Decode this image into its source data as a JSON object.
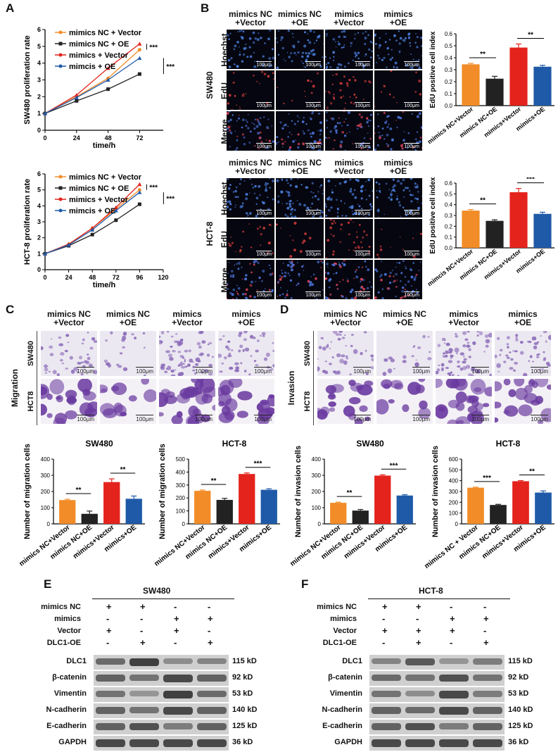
{
  "panels": {
    "A": "A",
    "B": "B",
    "C": "C",
    "D": "D",
    "E": "E",
    "F": "F"
  },
  "colors": {
    "orange": "#f28c28",
    "black": "#222222",
    "red": "#e3231c",
    "blue": "#1f5aa8"
  },
  "panelA": {
    "charts": [
      {
        "type": "line",
        "ylabel": "SW480 proliferation rate",
        "xlabel": "time/h",
        "x": [
          0,
          24,
          48,
          72
        ],
        "xticks": [
          "0",
          "24",
          "48",
          "72"
        ],
        "yticks": [
          "0",
          "1",
          "2",
          "3",
          "4",
          "5",
          "6"
        ],
        "xlim": [
          0,
          90
        ],
        "ylim": [
          0,
          6
        ],
        "series": [
          {
            "name": "mimics NC + Vector",
            "color": "#f28c28",
            "marker": "circle",
            "values": [
              1,
              2.0,
              3.1,
              4.8
            ]
          },
          {
            "name": "mimics NC + OE",
            "color": "#222222",
            "marker": "square",
            "values": [
              1,
              1.75,
              2.45,
              3.35
            ]
          },
          {
            "name": "mimics + Vector",
            "color": "#e3231c",
            "marker": "triangle",
            "values": [
              1,
              2.1,
              3.7,
              5.15
            ]
          },
          {
            "name": "mimcis + OE",
            "color": "#1f5aa8",
            "marker": "triangle",
            "values": [
              1,
              1.95,
              3.0,
              4.3
            ]
          }
        ],
        "sig": [
          "***",
          "***"
        ]
      },
      {
        "type": "line",
        "ylabel": "HCT-8 proliferation rate",
        "xlabel": "time/h",
        "x": [
          0,
          24,
          48,
          72,
          96
        ],
        "xticks": [
          "0",
          "24",
          "48",
          "72",
          "96",
          "120"
        ],
        "yticks": [
          "0",
          "1",
          "2",
          "3",
          "4",
          "5",
          "6"
        ],
        "xlim": [
          0,
          120
        ],
        "ylim": [
          0,
          6
        ],
        "series": [
          {
            "name": "mimics NC + Vector",
            "color": "#f28c28",
            "marker": "circle",
            "values": [
              1,
              1.6,
              2.6,
              3.8,
              5.0
            ]
          },
          {
            "name": "mimics NC + OE",
            "color": "#222222",
            "marker": "square",
            "values": [
              1,
              1.5,
              2.2,
              3.1,
              4.1
            ]
          },
          {
            "name": "mimics + Vector",
            "color": "#e3231c",
            "marker": "triangle",
            "values": [
              1,
              1.6,
              2.6,
              3.9,
              5.35
            ]
          },
          {
            "name": "mimcis + OE",
            "color": "#1f5aa8",
            "marker": "triangle",
            "values": [
              1,
              1.55,
              2.5,
              3.7,
              4.85
            ]
          }
        ],
        "sig": [
          "***",
          "***"
        ]
      }
    ]
  },
  "panelB": {
    "rows": [
      "Hoechst",
      "EdU",
      "Merge"
    ],
    "top": {
      "cell": "SW480",
      "cols": [
        "mimics NC\n+Vector",
        "mimics NC\n+OE",
        "mimics\n+Vector",
        "mimics\n+OE"
      ],
      "scale": "100μm"
    },
    "bottom": {
      "cell": "HCT-8",
      "cols": [
        "mimics NC\n+Vector",
        "mimics NC\n+OE",
        "mimics\n+Vector",
        "mimics\n+OE"
      ],
      "scale": "100μm"
    },
    "charts": [
      {
        "type": "bar",
        "ylabel": "EdU positive cell index",
        "categories": [
          "mimics NC+Vector",
          "mimics NC+OE",
          "mimics+Vector",
          "mimics+OE"
        ],
        "values": [
          0.345,
          0.225,
          0.485,
          0.325
        ],
        "errors": [
          0.008,
          0.02,
          0.03,
          0.012
        ],
        "ylim": [
          0,
          0.6
        ],
        "yticks": [
          "0.0",
          "0.1",
          "0.2",
          "0.3",
          "0.4",
          "0.5",
          "0.6"
        ],
        "sig": [
          "**",
          "**"
        ]
      },
      {
        "type": "bar",
        "ylabel": "EdU positive cell index",
        "categories": [
          "mimcis NC+Vector",
          "mimics NC+OE",
          "mimics+Vector",
          "mimics+OE"
        ],
        "values": [
          0.345,
          0.25,
          0.515,
          0.315
        ],
        "errors": [
          0.01,
          0.01,
          0.035,
          0.015
        ],
        "ylim": [
          0,
          0.6
        ],
        "yticks": [
          "0.0",
          "0.1",
          "0.2",
          "0.3",
          "0.4",
          "0.5",
          "0.6"
        ],
        "sig": [
          "**",
          "***"
        ]
      }
    ]
  },
  "panelC": {
    "side": "Migration",
    "rows": [
      "SW480",
      "HCT8"
    ],
    "cols": [
      "mimics NC\n+Vector",
      "mimics NC\n+OE",
      "mimics\n+Vector",
      "mimics\n+OE"
    ],
    "scale": "100μm",
    "charts": [
      {
        "type": "bar",
        "title": "SW480",
        "ylabel": "Number of migration cells",
        "categories": [
          "mimics NC+Vector",
          "mimics NC+OE",
          "mimics+Vector",
          "mimics+OE"
        ],
        "values": [
          147,
          62,
          258,
          155
        ],
        "errors": [
          5,
          17,
          20,
          17
        ],
        "ylim": [
          0,
          400
        ],
        "yticks": [
          "0",
          "100",
          "200",
          "300",
          "400"
        ],
        "sig": [
          "**",
          "**"
        ]
      },
      {
        "type": "bar",
        "title": "HCT-8",
        "ylabel": "Number of migration cells",
        "categories": [
          "mimics NC+Vector",
          "mimics NC+OE",
          "mimics+Vector",
          "mimics+OE"
        ],
        "values": [
          255,
          185,
          385,
          263
        ],
        "errors": [
          6,
          12,
          8,
          8
        ],
        "ylim": [
          0,
          500
        ],
        "yticks": [
          "0",
          "100",
          "200",
          "300",
          "400",
          "500"
        ],
        "sig": [
          "**",
          "***"
        ]
      }
    ]
  },
  "panelD": {
    "side": "Invasion",
    "rows": [
      "SW480",
      "HCT8"
    ],
    "cols": [
      "mimics NC\n+Vector",
      "mimics NC\n+OE",
      "mimics\n+Vector",
      "mimics\n+OE"
    ],
    "scale": "100μm",
    "charts": [
      {
        "type": "bar",
        "title": "SW480",
        "ylabel": "Number of invasion cells",
        "categories": [
          "mimics NC+Vector",
          "mimics NC+OE",
          "mimics+Vector",
          "mimics+OE"
        ],
        "values": [
          130,
          82,
          298,
          175
        ],
        "errors": [
          4,
          7,
          5,
          5
        ],
        "ylim": [
          0,
          400
        ],
        "yticks": [
          "0",
          "100",
          "200",
          "300",
          "400"
        ],
        "sig": [
          "**",
          "***"
        ]
      },
      {
        "type": "bar",
        "title": "HCT-8",
        "ylabel": "Number of invasion cells",
        "categories": [
          "mimics NC + Vector",
          "mimics NC+OE",
          "mimics+Vector",
          "mimics+OE"
        ],
        "values": [
          335,
          175,
          395,
          290
        ],
        "errors": [
          5,
          6,
          6,
          15
        ],
        "ylim": [
          0,
          600
        ],
        "yticks": [
          "0",
          "100",
          "200",
          "300",
          "400",
          "500",
          "600"
        ],
        "sig": [
          "***",
          "**"
        ]
      }
    ]
  },
  "panelE": {
    "cell": "SW480",
    "conditions": [
      {
        "label": "mimics NC",
        "marks": [
          "+",
          "+",
          "-",
          "-"
        ]
      },
      {
        "label": "mimics",
        "marks": [
          "-",
          "-",
          "+",
          "+"
        ]
      },
      {
        "label": "Vector",
        "marks": [
          "+",
          "-",
          "+",
          "-"
        ]
      },
      {
        "label": "DLC1-OE",
        "marks": [
          "-",
          "+",
          "-",
          "+"
        ]
      }
    ],
    "blots": [
      {
        "protein": "DLC1",
        "size": "115 kD",
        "levels": [
          0.55,
          0.8,
          0.35,
          0.4
        ]
      },
      {
        "protein": "β-catenin",
        "size": "92 kD",
        "levels": [
          0.6,
          0.5,
          0.75,
          0.6
        ]
      },
      {
        "protein": "Vimentin",
        "size": "53 kD",
        "levels": [
          0.5,
          0.3,
          0.8,
          0.55
        ]
      },
      {
        "protein": "N-cadherin",
        "size": "140 kD",
        "levels": [
          0.6,
          0.5,
          0.75,
          0.6
        ]
      },
      {
        "protein": "E-cadherin",
        "size": "125 kD",
        "levels": [
          0.6,
          0.7,
          0.45,
          0.6
        ]
      },
      {
        "protein": "GAPDH",
        "size": "36 kD",
        "levels": [
          0.75,
          0.75,
          0.75,
          0.75
        ]
      }
    ]
  },
  "panelF": {
    "cell": "HCT-8",
    "conditions": [
      {
        "label": "mimics NC",
        "marks": [
          "+",
          "+",
          "-",
          "-"
        ]
      },
      {
        "label": "mimics",
        "marks": [
          "-",
          "-",
          "+",
          "+"
        ]
      },
      {
        "label": "Vector",
        "marks": [
          "+",
          "+",
          "+",
          "-"
        ]
      },
      {
        "label": "DLC1-OE",
        "marks": [
          "-",
          "+",
          "-",
          "+"
        ]
      }
    ],
    "blots": [
      {
        "protein": "DLC1",
        "size": "115 kD",
        "levels": [
          0.4,
          0.65,
          0.3,
          0.45
        ]
      },
      {
        "protein": "β-catenin",
        "size": "92 kD",
        "levels": [
          0.55,
          0.5,
          0.7,
          0.5
        ]
      },
      {
        "protein": "Vimentin",
        "size": "53 kD",
        "levels": [
          0.5,
          0.35,
          0.75,
          0.45
        ]
      },
      {
        "protein": "N-cadherin",
        "size": "140 kD",
        "levels": [
          0.6,
          0.55,
          0.75,
          0.6
        ]
      },
      {
        "protein": "E-cadherin",
        "size": "125 kD",
        "levels": [
          0.6,
          0.7,
          0.45,
          0.6
        ]
      },
      {
        "protein": "GAPDH",
        "size": "36 kD",
        "levels": [
          0.75,
          0.75,
          0.75,
          0.75
        ]
      }
    ]
  }
}
